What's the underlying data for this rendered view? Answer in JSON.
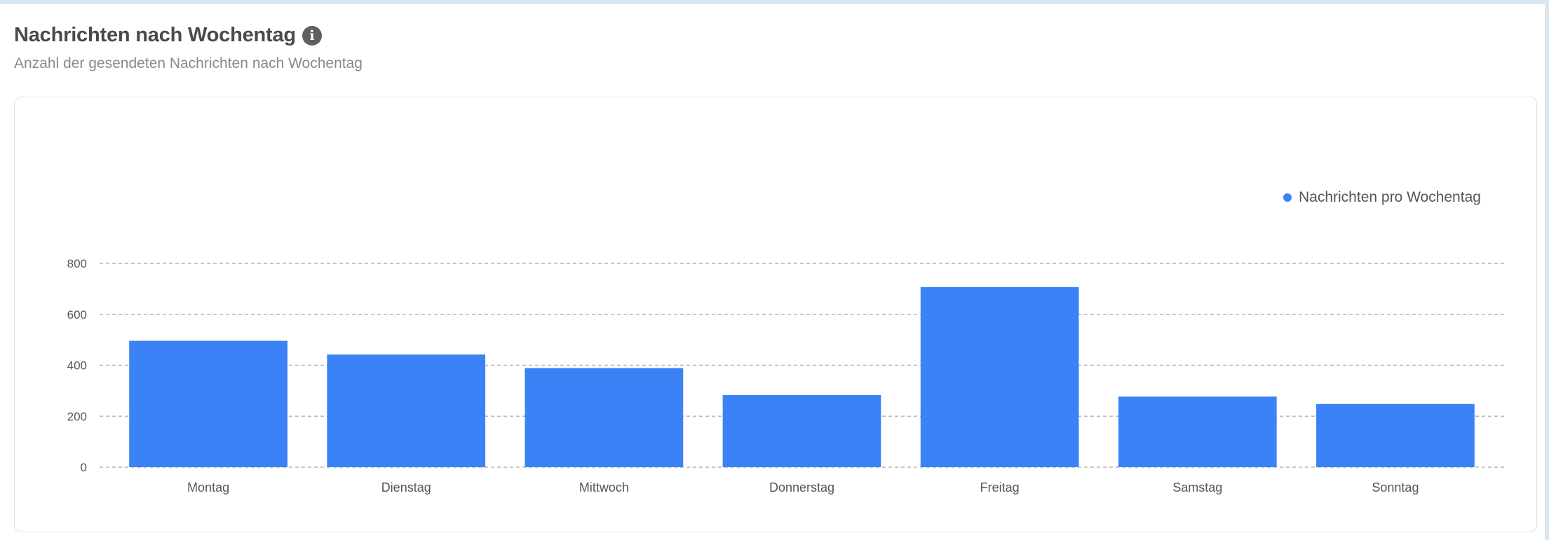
{
  "header": {
    "title": "Nachrichten nach Wochentag",
    "info_icon": "info-icon",
    "subtitle": "Anzahl der gesendeten Nachrichten nach Wochentag"
  },
  "colors": {
    "bar": "#3b82f6",
    "grid": "#b5b5b5",
    "text": "#555555"
  },
  "chart_data": {
    "type": "bar",
    "categories": [
      "Montag",
      "Dienstag",
      "Mittwoch",
      "Donnerstag",
      "Freitag",
      "Samstag",
      "Sonntag"
    ],
    "series": [
      {
        "name": "Nachrichten pro Wochentag",
        "values": [
          496,
          442,
          389,
          283,
          707,
          277,
          248
        ]
      }
    ],
    "yticks": [
      0,
      200,
      400,
      600,
      800
    ],
    "ylim": [
      0,
      800
    ],
    "grid": true,
    "legend_position": "top-right"
  }
}
